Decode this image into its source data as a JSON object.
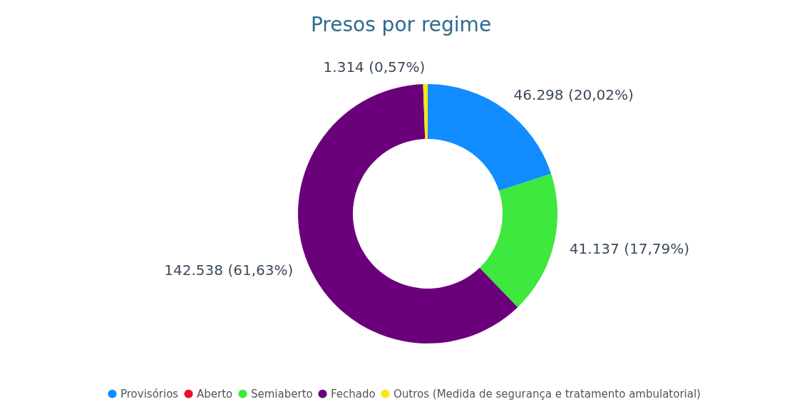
{
  "chart_data": {
    "type": "donut",
    "title": "Presos por regime",
    "categories": [
      "Provisórios",
      "Aberto",
      "Semiaberto",
      "Fechado",
      "Outros (Medida de segurança e tratamento ambulatorial)"
    ],
    "values": [
      46298,
      0,
      41137,
      142538,
      1314
    ],
    "colors": [
      "#118dff",
      "#e81123",
      "#3ee83e",
      "#6b007b",
      "#f5e71a"
    ],
    "value_labels": [
      "46.298 (20,02%)",
      null,
      "41.137 (17,79%)",
      "142.538 (61,63%)",
      "1.314 (0,57%)"
    ],
    "legend": "bottom"
  }
}
